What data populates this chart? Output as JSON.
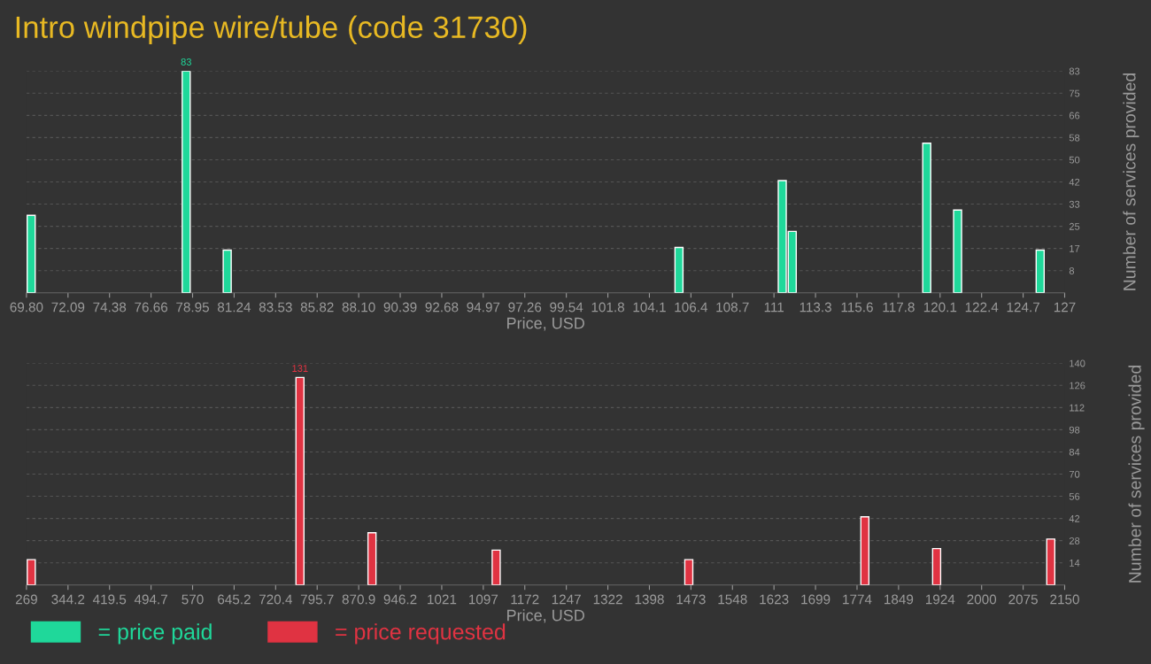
{
  "chart_data": [
    {
      "type": "bar",
      "title": "Intro windpipe wire/tube (code 31730)",
      "xlabel": "Price, USD",
      "ylabel": "Number of services provided",
      "x": [
        70.06,
        78.6,
        80.86,
        105.75,
        111.44,
        111.99,
        119.4,
        121.1,
        125.65
      ],
      "series": [
        {
          "name": "= price paid",
          "color": "#1fd89a",
          "values": [
            29,
            83,
            16,
            17,
            42,
            23,
            56,
            31,
            16
          ],
          "value_labels": [
            null,
            "83",
            null,
            null,
            null,
            null,
            null,
            null,
            null
          ]
        }
      ],
      "xlim": [
        69.8,
        127
      ],
      "xticks": [
        {
          "value": 69.8,
          "label": "69.80"
        },
        {
          "value": 72.088,
          "label": "72.09"
        },
        {
          "value": 74.376,
          "label": "74.38"
        },
        {
          "value": 76.664,
          "label": "76.66"
        },
        {
          "value": 78.952,
          "label": "78.95"
        },
        {
          "value": 81.24,
          "label": "81.24"
        },
        {
          "value": 83.528,
          "label": "83.53"
        },
        {
          "value": 85.816,
          "label": "85.82"
        },
        {
          "value": 88.104,
          "label": "88.10"
        },
        {
          "value": 90.392,
          "label": "90.39"
        },
        {
          "value": 92.68,
          "label": "92.68"
        },
        {
          "value": 94.968,
          "label": "94.97"
        },
        {
          "value": 97.256,
          "label": "97.26"
        },
        {
          "value": 99.544,
          "label": "99.54"
        },
        {
          "value": 101.832,
          "label": "101.8"
        },
        {
          "value": 104.12,
          "label": "104.1"
        },
        {
          "value": 106.408,
          "label": "106.4"
        },
        {
          "value": 108.696,
          "label": "108.7"
        },
        {
          "value": 110.984,
          "label": "111"
        },
        {
          "value": 113.272,
          "label": "113.3"
        },
        {
          "value": 115.56,
          "label": "115.6"
        },
        {
          "value": 117.848,
          "label": "117.8"
        },
        {
          "value": 120.136,
          "label": "120.1"
        },
        {
          "value": 122.424,
          "label": "122.4"
        },
        {
          "value": 124.712,
          "label": "124.7"
        },
        127
      ],
      "ylim": [
        0,
        83
      ],
      "yticks": [
        {
          "value": 8.3,
          "label": "8"
        },
        {
          "value": 16.6,
          "label": "17"
        },
        {
          "value": 24.9,
          "label": "25"
        },
        {
          "value": 33.2,
          "label": "33"
        },
        {
          "value": 41.5,
          "label": "42"
        },
        {
          "value": 49.8,
          "label": "50"
        },
        {
          "value": 58.1,
          "label": "58"
        },
        {
          "value": 66.4,
          "label": "66"
        },
        {
          "value": 74.7,
          "label": "75"
        },
        83
      ],
      "grid": "y",
      "legend": "bottom left"
    },
    {
      "type": "bar",
      "xlabel": "Price, USD",
      "ylabel": "Number of services provided",
      "x": [
        277.7,
        764.5,
        895,
        1120,
        1469,
        1788,
        1918,
        2124.8
      ],
      "series": [
        {
          "name": "= price requested",
          "color": "#e03342",
          "values": [
            16,
            131,
            33,
            22,
            16,
            43,
            23,
            29
          ],
          "value_labels": [
            null,
            "131",
            null,
            null,
            null,
            null,
            null,
            null
          ]
        }
      ],
      "xlim": [
        269,
        2150
      ],
      "xticks": [
        269,
        {
          "value": 344.24,
          "label": "344.2"
        },
        {
          "value": 419.48,
          "label": "419.5"
        },
        {
          "value": 494.72,
          "label": "494.7"
        },
        {
          "value": 569.96,
          "label": "570"
        },
        645.2,
        {
          "value": 720.44,
          "label": "720.4"
        },
        {
          "value": 795.68,
          "label": "795.7"
        },
        {
          "value": 870.92,
          "label": "870.9"
        },
        {
          "value": 946.16,
          "label": "946.2"
        },
        {
          "value": 1021.4,
          "label": "1021"
        },
        {
          "value": 1096.64,
          "label": "1097"
        },
        {
          "value": 1171.88,
          "label": "1172"
        },
        {
          "value": 1247.12,
          "label": "1247"
        },
        {
          "value": 1322.36,
          "label": "1322"
        },
        {
          "value": 1397.6,
          "label": "1398"
        },
        {
          "value": 1472.84,
          "label": "1473"
        },
        {
          "value": 1548.08,
          "label": "1548"
        },
        {
          "value": 1623.32,
          "label": "1623"
        },
        {
          "value": 1698.56,
          "label": "1699"
        },
        {
          "value": 1773.8,
          "label": "1774"
        },
        {
          "value": 1849.04,
          "label": "1849"
        },
        {
          "value": 1924.28,
          "label": "1924"
        },
        {
          "value": 1999.52,
          "label": "2000"
        },
        {
          "value": 2074.76,
          "label": "2075"
        },
        2150
      ],
      "ylim": [
        0,
        140
      ],
      "yticks": [
        14,
        28,
        42,
        56,
        70,
        84,
        98,
        112,
        126,
        140
      ],
      "grid": "y",
      "legend": "bottom left"
    }
  ]
}
